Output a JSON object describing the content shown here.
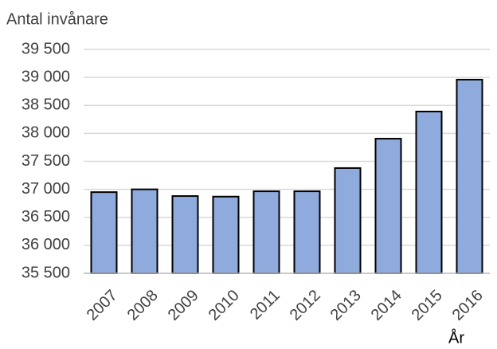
{
  "chart_data": {
    "type": "bar",
    "y_axis_label": "Antal invånare",
    "x_axis_label": "År",
    "categories": [
      "2007",
      "2008",
      "2009",
      "2010",
      "2011",
      "2012",
      "2013",
      "2014",
      "2015",
      "2016"
    ],
    "values": [
      36950,
      37000,
      36880,
      36870,
      36965,
      36965,
      37380,
      37905,
      38390,
      38960
    ],
    "color": "#8faadc",
    "ylim": [
      35500,
      39500
    ],
    "yticks": [
      {
        "value": 35500,
        "label": "35 500"
      },
      {
        "value": 36000,
        "label": "36 000"
      },
      {
        "value": 36500,
        "label": "36 500"
      },
      {
        "value": 37000,
        "label": "37 000"
      },
      {
        "value": 37500,
        "label": "37 500"
      },
      {
        "value": 38000,
        "label": "38 000"
      },
      {
        "value": 38500,
        "label": "38 500"
      },
      {
        "value": 39000,
        "label": "39 000"
      },
      {
        "value": 39500,
        "label": "39 500"
      }
    ],
    "grid": true
  }
}
